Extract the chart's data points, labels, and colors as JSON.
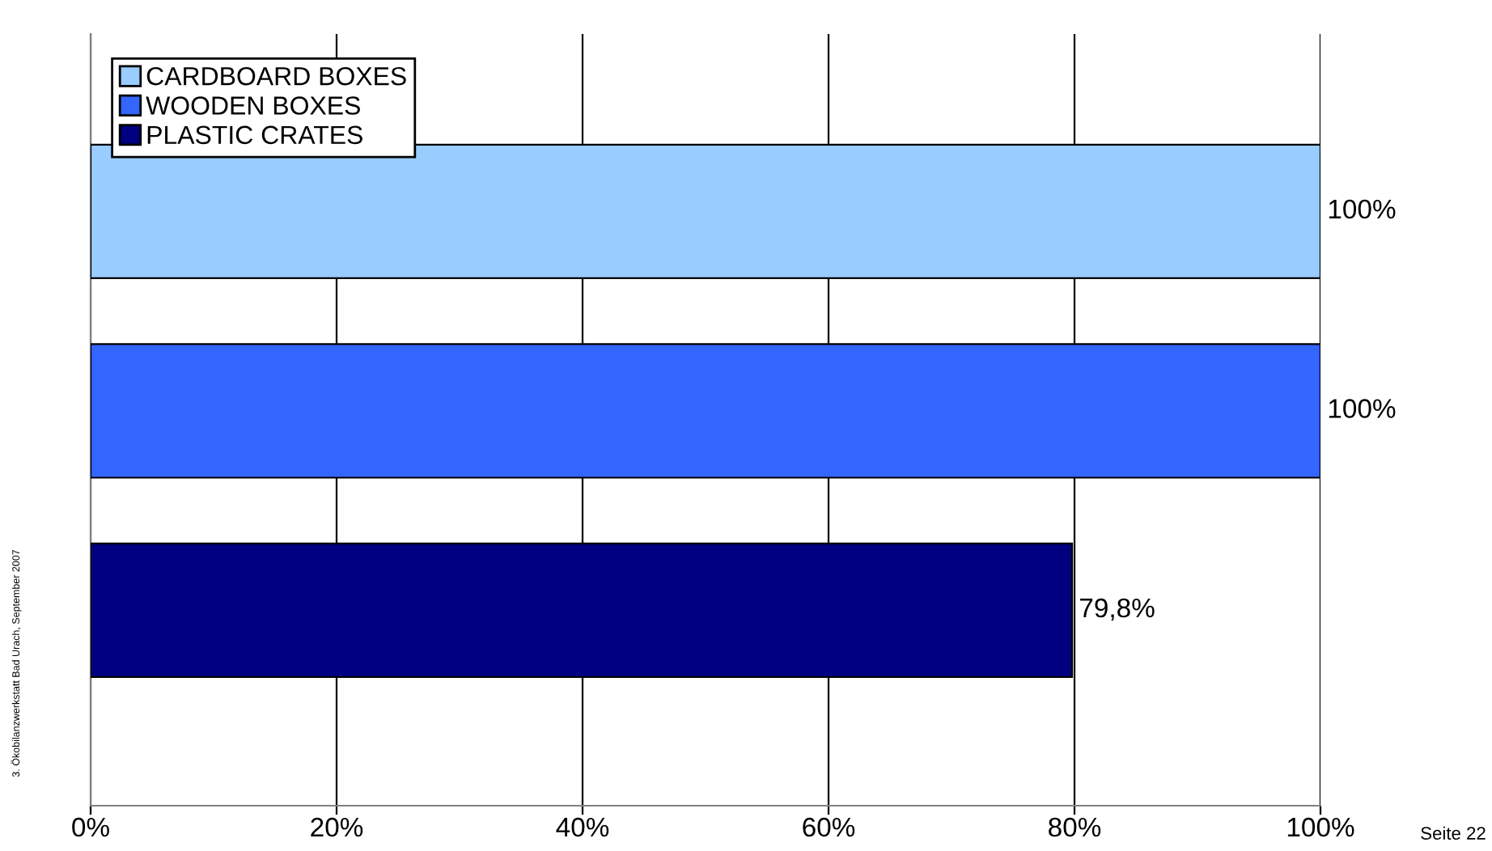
{
  "chart_data": {
    "type": "bar",
    "orientation": "horizontal",
    "categories": [
      null,
      null,
      null
    ],
    "series": [
      {
        "name": "CARDBOARD BOXES",
        "color": "#99ccff",
        "values": [
          100,
          null,
          null
        ],
        "value_labels": [
          "100%",
          null,
          null
        ]
      },
      {
        "name": "WOODEN BOXES",
        "color": "#3366ff",
        "values": [
          null,
          100,
          null
        ],
        "value_labels": [
          null,
          "100%",
          null
        ]
      },
      {
        "name": "PLASTIC CRATES",
        "color": "#000080",
        "values": [
          null,
          null,
          79.8
        ],
        "value_labels": [
          null,
          null,
          "79,8%"
        ]
      }
    ],
    "xlim": [
      0,
      100
    ],
    "xticks": [
      {
        "value": 0,
        "label": "0%"
      },
      {
        "value": 20,
        "label": "20%"
      },
      {
        "value": 40,
        "label": "40%"
      },
      {
        "value": 60,
        "label": "60%"
      },
      {
        "value": 80,
        "label": "80%"
      },
      {
        "value": 100,
        "label": "100%"
      }
    ],
    "grid": "x",
    "legend": "top left",
    "annotations": [
      "3. Ökobilanzwerkstatt Bad Urach, September 2007",
      "Seite 22"
    ]
  }
}
